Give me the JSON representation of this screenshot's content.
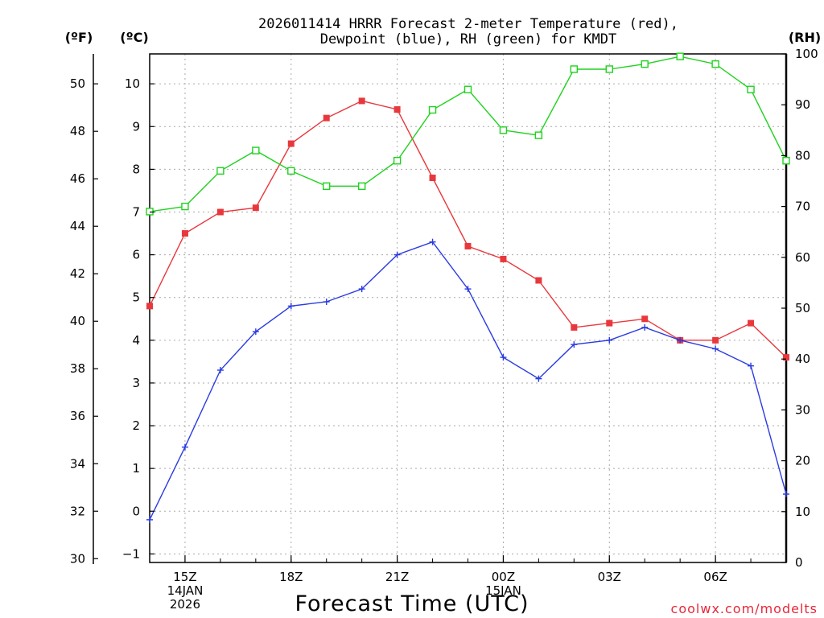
{
  "chart_data": {
    "type": "line",
    "title_line1": "2026011414 HRRR Forecast 2-meter Temperature (red),",
    "title_line2": "Dewpoint (blue), RH (green) for KMDT",
    "xlabel": "Forecast Time (UTC)",
    "credit": "coolwx.com/modelts",
    "axis_units": {
      "fahrenheit": "(ºF)",
      "celsius": "(ºC)",
      "rh": "(RH)"
    },
    "x": [
      14,
      15,
      16,
      17,
      18,
      19,
      20,
      21,
      22,
      23,
      24,
      25,
      26,
      27,
      28,
      29,
      30,
      31,
      32
    ],
    "x_unit": "hours UTC since 00Z 14JAN2026",
    "x_ticks": [
      {
        "x": 15,
        "lines": [
          "15Z",
          "14JAN",
          "2026"
        ]
      },
      {
        "x": 18,
        "lines": [
          "18Z"
        ]
      },
      {
        "x": 21,
        "lines": [
          "21Z"
        ]
      },
      {
        "x": 24,
        "lines": [
          "00Z",
          "15JAN"
        ]
      },
      {
        "x": 27,
        "lines": [
          "03Z"
        ]
      },
      {
        "x": 30,
        "lines": [
          "06Z"
        ]
      }
    ],
    "celsius_ylim": [
      -1.2,
      10.7
    ],
    "celsius_ticks": [
      -1,
      0,
      1,
      2,
      3,
      4,
      5,
      6,
      7,
      8,
      9,
      10
    ],
    "fahrenheit_ticks": [
      30,
      32,
      34,
      36,
      38,
      40,
      42,
      44,
      46,
      48,
      50
    ],
    "rh_ylim": [
      0,
      100
    ],
    "rh_ticks": [
      0,
      10,
      20,
      30,
      40,
      50,
      60,
      70,
      80,
      90,
      100
    ],
    "grid": true,
    "series": [
      {
        "name": "Temperature",
        "axis": "celsius",
        "color": "#e8383d",
        "marker": "filled-square",
        "values": [
          4.8,
          6.5,
          7.0,
          7.1,
          8.6,
          9.2,
          9.6,
          9.4,
          7.8,
          6.2,
          5.9,
          5.4,
          4.3,
          4.4,
          4.5,
          4.0,
          4.0,
          4.4,
          3.6
        ]
      },
      {
        "name": "Dewpoint",
        "axis": "celsius",
        "color": "#2a3be0",
        "marker": "plus",
        "values": [
          -0.2,
          1.5,
          3.3,
          4.2,
          4.8,
          4.9,
          5.2,
          6.0,
          6.3,
          5.2,
          3.6,
          3.1,
          3.9,
          4.0,
          4.3,
          4.0,
          3.8,
          3.4,
          0.4
        ]
      },
      {
        "name": "RH",
        "axis": "rh",
        "color": "#1fd21f",
        "marker": "open-square",
        "values": [
          69,
          70,
          77,
          81,
          77,
          74,
          74,
          79,
          89,
          93,
          85,
          84,
          97,
          97,
          98,
          99.5,
          98,
          93,
          79
        ]
      }
    ]
  }
}
